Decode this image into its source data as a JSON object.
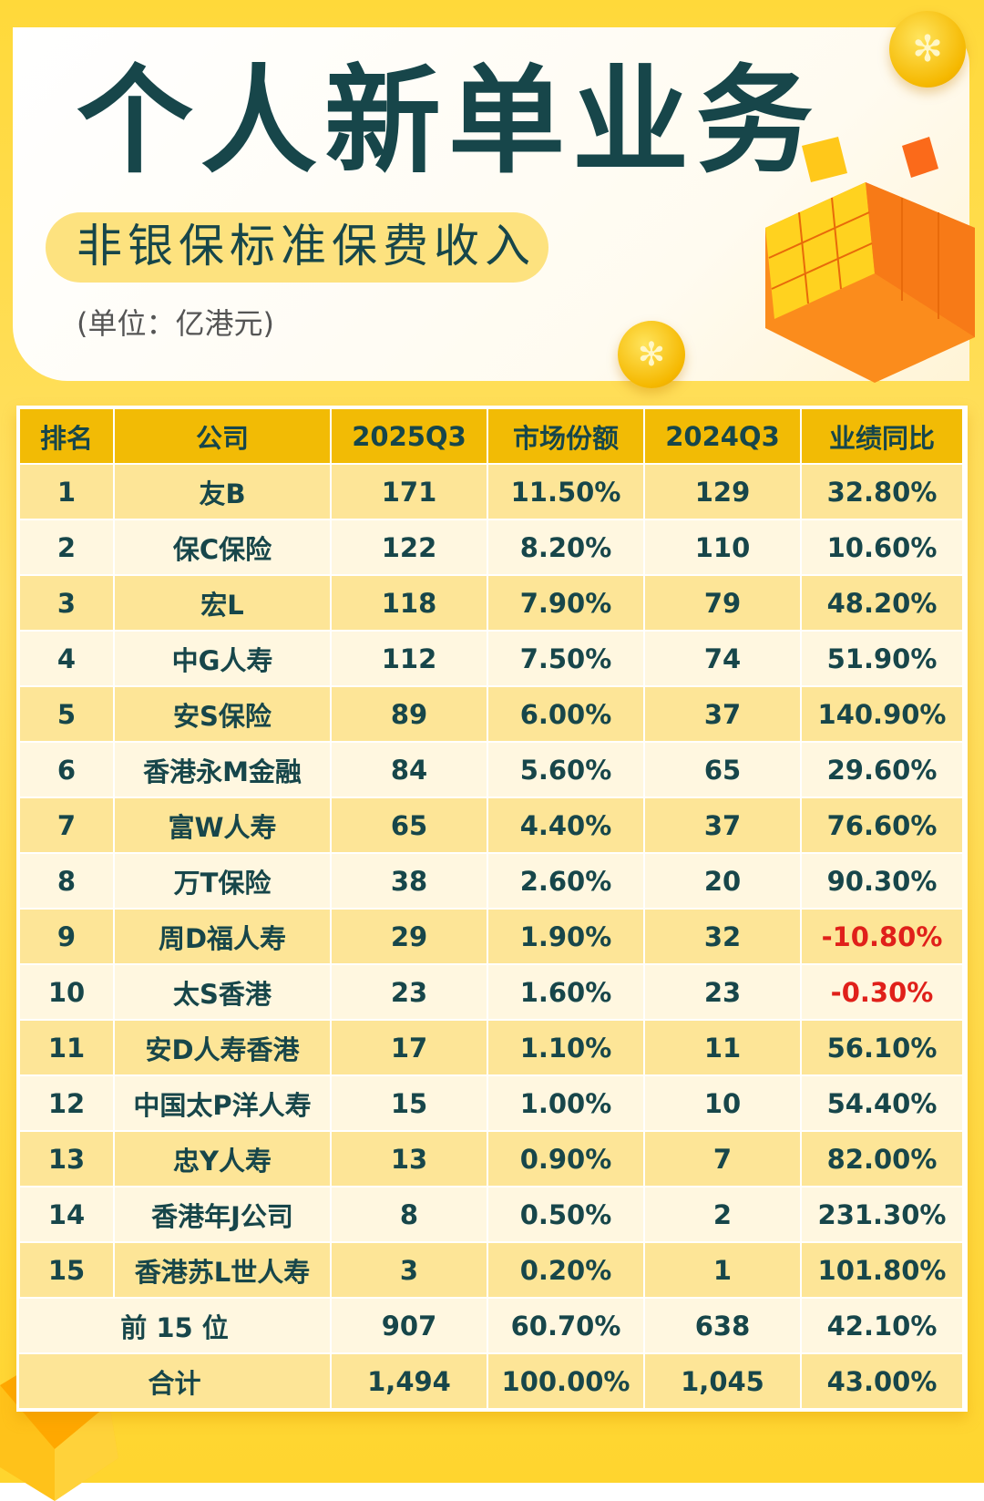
{
  "header": {
    "title": "个人新单业务",
    "subtitle": "非银保标准保费收入",
    "unit": "(单位：亿港元)"
  },
  "decor": {
    "coin_symbol": "HK$ coin",
    "cube": "orange rubik cube"
  },
  "colors": {
    "header_bg": "#f2bb05",
    "text": "#17464a",
    "negative": "#e0201a",
    "row_odd": "#fde597",
    "row_even": "#fff7e0"
  },
  "table": {
    "columns": [
      "排名",
      "公司",
      "2025Q3",
      "市场份额",
      "2024Q3",
      "业绩同比"
    ],
    "rows": [
      [
        "1",
        "友B",
        "171",
        "11.50%",
        "129",
        "32.80%"
      ],
      [
        "2",
        "保C保险",
        "122",
        "8.20%",
        "110",
        "10.60%"
      ],
      [
        "3",
        "宏L",
        "118",
        "7.90%",
        "79",
        "48.20%"
      ],
      [
        "4",
        "中G人寿",
        "112",
        "7.50%",
        "74",
        "51.90%"
      ],
      [
        "5",
        "安S保险",
        "89",
        "6.00%",
        "37",
        "140.90%"
      ],
      [
        "6",
        "香港永M金融",
        "84",
        "5.60%",
        "65",
        "29.60%"
      ],
      [
        "7",
        "富W人寿",
        "65",
        "4.40%",
        "37",
        "76.60%"
      ],
      [
        "8",
        "万T保险",
        "38",
        "2.60%",
        "20",
        "90.30%"
      ],
      [
        "9",
        "周D福人寿",
        "29",
        "1.90%",
        "32",
        "-10.80%"
      ],
      [
        "10",
        "太S香港",
        "23",
        "1.60%",
        "23",
        "-0.30%"
      ],
      [
        "11",
        "安D人寿香港",
        "17",
        "1.10%",
        "11",
        "56.10%"
      ],
      [
        "12",
        "中国太P洋人寿",
        "15",
        "1.00%",
        "10",
        "54.40%"
      ],
      [
        "13",
        "忠Y人寿",
        "13",
        "0.90%",
        "7",
        "82.00%"
      ],
      [
        "14",
        "香港年J公司",
        "8",
        "0.50%",
        "2",
        "231.30%"
      ],
      [
        "15",
        "香港苏L世人寿",
        "3",
        "0.20%",
        "1",
        "101.80%"
      ]
    ],
    "summary": [
      [
        "前 15 位",
        "907",
        "60.70%",
        "638",
        "42.10%"
      ],
      [
        "合计",
        "1,494",
        "100.00%",
        "1,045",
        "43.00%"
      ]
    ]
  }
}
